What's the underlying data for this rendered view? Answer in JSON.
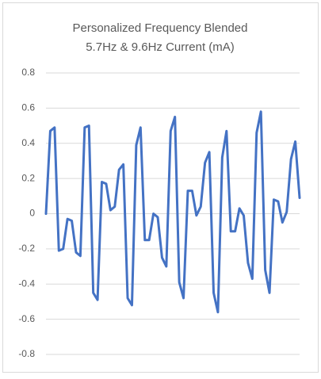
{
  "chart_data": {
    "type": "line",
    "title": [
      "Personalized Frequency Blended",
      "5.7Hz & 9.6Hz Current (mA)"
    ],
    "series": [
      {
        "name": "Current",
        "color": "#4472c4",
        "values": [
          0,
          0.47,
          0.49,
          -0.21,
          -0.2,
          -0.03,
          -0.04,
          -0.22,
          -0.24,
          0.49,
          0.5,
          -0.45,
          -0.49,
          0.18,
          0.17,
          0.02,
          0.04,
          0.25,
          0.28,
          -0.48,
          -0.52,
          0.39,
          0.49,
          -0.15,
          -0.15,
          0,
          -0.02,
          -0.25,
          -0.3,
          0.47,
          0.55,
          -0.39,
          -0.48,
          0.13,
          0.13,
          -0.01,
          0.04,
          0.29,
          0.35,
          -0.45,
          -0.56,
          0.32,
          0.47,
          -0.1,
          -0.1,
          0.03,
          -0.01,
          -0.28,
          -0.37,
          0.46,
          0.58,
          -0.32,
          -0.45,
          0.08,
          0.07,
          -0.05,
          0.01,
          0.31,
          0.41,
          0.09
        ]
      }
    ],
    "ylim": [
      -0.8,
      0.8
    ],
    "yticks": [
      -0.8,
      -0.6,
      -0.4,
      -0.2,
      0,
      0.2,
      0.4,
      0.6,
      0.8
    ],
    "grid": true
  }
}
